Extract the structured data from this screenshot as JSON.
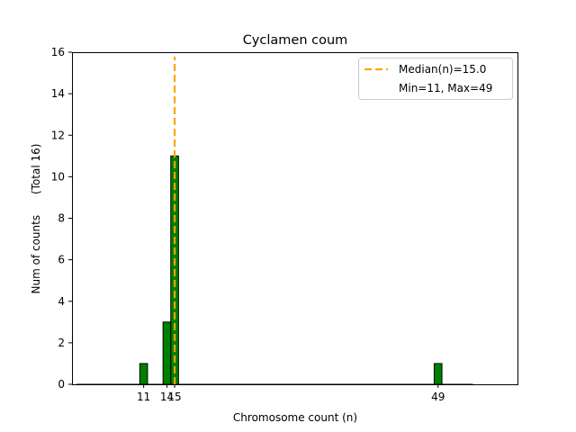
{
  "chart_data": {
    "type": "bar",
    "title": "Cyclamen coum",
    "xlabel": "Chromosome count (n)",
    "ylabel": "Num of counts      (Total 16)",
    "xlim": [
      1.75,
      59.25
    ],
    "ylim": [
      0,
      16
    ],
    "yticks": [
      0,
      2,
      4,
      6,
      8,
      10,
      12,
      14,
      16
    ],
    "xticks": [
      11,
      14,
      15,
      49
    ],
    "bin_width": 1,
    "bars": [
      {
        "x": 11,
        "value": 1
      },
      {
        "x": 14,
        "value": 3
      },
      {
        "x": 15,
        "value": 11
      },
      {
        "x": 49,
        "value": 1
      }
    ],
    "median": 15.0,
    "grid": false,
    "legend": {
      "placement": "top-right",
      "entries": [
        "Median(n)=15.0",
        "Min=11, Max=49"
      ]
    },
    "colors": {
      "bar_fill": "#008000",
      "bar_edge": "#000000",
      "median_line": "#ffa500"
    }
  }
}
